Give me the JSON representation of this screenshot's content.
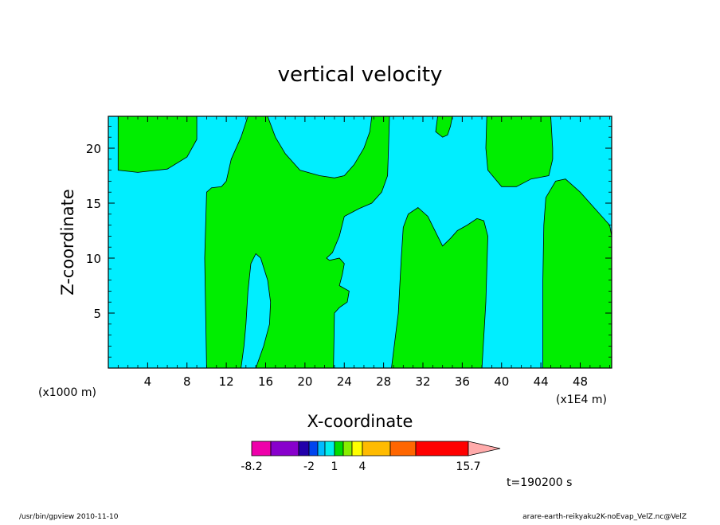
{
  "chart_data": {
    "type": "heatmap",
    "title": "vertical velocity",
    "xlabel": "X-coordinate",
    "ylabel": "Z-coordinate",
    "x_unit": "(x1E4 m)",
    "y_unit": "(x1000 m)",
    "xlim": [
      0,
      51.2
    ],
    "ylim": [
      0,
      22.9
    ],
    "x_ticks": [
      4,
      8,
      12,
      16,
      20,
      24,
      28,
      32,
      36,
      40,
      44,
      48
    ],
    "y_ticks": [
      5,
      10,
      15,
      20
    ],
    "grid": false,
    "time_label": "t=190200 s",
    "colorbar": {
      "labels": [
        {
          "text": "-8.2",
          "value": -8.2
        },
        {
          "text": "-2",
          "value": -2
        },
        {
          "text": "1",
          "value": 1
        },
        {
          "text": "4",
          "value": 4
        },
        {
          "text": "15.7",
          "value": 15.7
        }
      ],
      "colors": [
        "#ee00aa",
        "#8800cc",
        "#2200aa",
        "#0044ee",
        "#00bbff",
        "#00eeee",
        "#00dd00",
        "#88ee00",
        "#ffff00",
        "#ffbb00",
        "#ff6600",
        "#ff0000",
        "#ff7777",
        "#ffaaaa"
      ]
    },
    "fields": {
      "positive_color": "#00ee00",
      "negative_color": "#00eeff"
    },
    "positive_regions": [
      [
        [
          1,
          22.9
        ],
        [
          1,
          18
        ],
        [
          3,
          17.8
        ],
        [
          6,
          18.1
        ],
        [
          8,
          19.2
        ],
        [
          9,
          20.8
        ],
        [
          9,
          22.9
        ]
      ],
      [
        [
          10,
          0
        ],
        [
          9.8,
          10
        ],
        [
          10,
          16
        ],
        [
          10.5,
          16.4
        ],
        [
          11.5,
          16.5
        ],
        [
          12,
          17
        ],
        [
          12.5,
          19
        ],
        [
          13.5,
          21
        ],
        [
          14.2,
          22.9
        ],
        [
          16.2,
          22.9
        ],
        [
          17,
          21
        ],
        [
          18,
          19.5
        ],
        [
          19.5,
          18
        ],
        [
          21.5,
          17.5
        ],
        [
          23,
          17.3
        ],
        [
          24,
          17.5
        ],
        [
          25,
          18.5
        ],
        [
          26,
          20
        ],
        [
          26.6,
          21.5
        ],
        [
          26.8,
          22.9
        ],
        [
          28.6,
          22.9
        ],
        [
          28.5,
          20
        ],
        [
          28.4,
          17.5
        ],
        [
          27.8,
          16
        ],
        [
          26.8,
          15
        ],
        [
          25.5,
          14.5
        ],
        [
          24,
          13.8
        ],
        [
          23.5,
          12
        ],
        [
          22.8,
          10.5
        ],
        [
          22.2,
          10
        ],
        [
          22.5,
          9.8
        ],
        [
          23.5,
          10
        ],
        [
          24,
          9.5
        ],
        [
          23.8,
          8.5
        ],
        [
          23.5,
          7.5
        ],
        [
          24.5,
          7
        ],
        [
          24.3,
          6
        ],
        [
          23.5,
          5.5
        ],
        [
          23,
          5
        ],
        [
          22.9,
          0
        ],
        [
          15,
          0
        ],
        [
          15.8,
          2
        ],
        [
          16.4,
          4
        ],
        [
          16.5,
          6
        ],
        [
          16.2,
          8
        ],
        [
          15.5,
          10
        ],
        [
          15,
          10.4
        ],
        [
          14.5,
          9.5
        ],
        [
          14.2,
          7
        ],
        [
          14,
          4
        ],
        [
          13.8,
          2
        ],
        [
          13.5,
          0
        ]
      ],
      [
        [
          28.8,
          0
        ],
        [
          29.5,
          5
        ],
        [
          29.8,
          10
        ],
        [
          30,
          12.8
        ],
        [
          30.5,
          14
        ],
        [
          31.5,
          14.6
        ],
        [
          32.5,
          13.8
        ],
        [
          33.5,
          12
        ],
        [
          34,
          11.1
        ],
        [
          34.8,
          11.8
        ],
        [
          35.5,
          12.5
        ],
        [
          36.5,
          13
        ],
        [
          37.5,
          13.6
        ],
        [
          38.2,
          13.4
        ],
        [
          38.6,
          12
        ],
        [
          38.4,
          6
        ],
        [
          38,
          0
        ]
      ],
      [
        [
          44.2,
          0
        ],
        [
          44.2,
          8
        ],
        [
          44.3,
          13
        ],
        [
          44.5,
          15.5
        ],
        [
          45.5,
          17
        ],
        [
          46.5,
          17.2
        ],
        [
          48,
          16
        ],
        [
          49.5,
          14.5
        ],
        [
          51,
          13
        ],
        [
          51.2,
          12
        ],
        [
          51.2,
          0
        ]
      ],
      [
        [
          38.5,
          22.9
        ],
        [
          38.4,
          20
        ],
        [
          38.6,
          18
        ],
        [
          40,
          16.5
        ],
        [
          41.5,
          16.5
        ],
        [
          43,
          17.2
        ],
        [
          44.8,
          17.5
        ],
        [
          45.2,
          19
        ],
        [
          45.2,
          20
        ],
        [
          45,
          22.9
        ]
      ],
      [
        [
          33.5,
          22.9
        ],
        [
          33.3,
          21.5
        ],
        [
          34,
          21
        ],
        [
          34.5,
          21.2
        ],
        [
          34.8,
          22
        ],
        [
          35,
          22.9
        ]
      ]
    ]
  },
  "footer": {
    "left": "/usr/bin/gpview  2010-11-10",
    "right": "arare-earth-reikyaku2K-noEvap_VelZ.nc@VelZ"
  }
}
